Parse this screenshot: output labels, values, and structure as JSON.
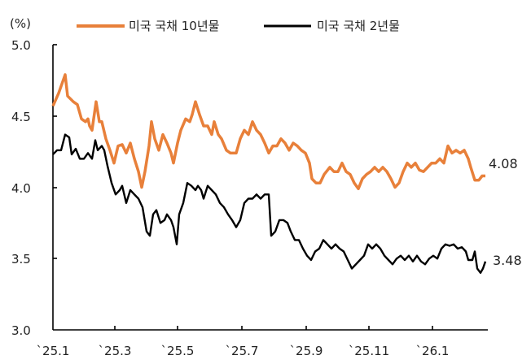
{
  "chart_data": {
    "type": "line",
    "title": "",
    "ylabel": "(%)",
    "xlabel": "",
    "ylim": [
      3.0,
      5.0
    ],
    "yticks": [
      "3.0",
      "3.5",
      "4.0",
      "4.5",
      "5.0"
    ],
    "xticks": [
      "`25.1",
      "`25.3",
      "`25.5",
      "`25.7",
      "`25.9",
      "`25.11",
      "`26.1"
    ],
    "grid": false,
    "legend_position": "top",
    "series": [
      {
        "name": "미국 국채 10년물",
        "color": "#E8803A",
        "end_label": "4.08",
        "points": [
          [
            65,
            4.57
          ],
          [
            72,
            4.66
          ],
          [
            80,
            4.79
          ],
          [
            83,
            4.64
          ],
          [
            90,
            4.6
          ],
          [
            95,
            4.58
          ],
          [
            100,
            4.48
          ],
          [
            105,
            4.46
          ],
          [
            108,
            4.48
          ],
          [
            110,
            4.43
          ],
          [
            113,
            4.4
          ],
          [
            118,
            4.6
          ],
          [
            122,
            4.46
          ],
          [
            125,
            4.46
          ],
          [
            130,
            4.34
          ],
          [
            135,
            4.26
          ],
          [
            140,
            4.17
          ],
          [
            145,
            4.29
          ],
          [
            150,
            4.3
          ],
          [
            155,
            4.24
          ],
          [
            160,
            4.31
          ],
          [
            165,
            4.2
          ],
          [
            170,
            4.11
          ],
          [
            174,
            4.0
          ],
          [
            178,
            4.11
          ],
          [
            183,
            4.29
          ],
          [
            186,
            4.46
          ],
          [
            190,
            4.34
          ],
          [
            195,
            4.26
          ],
          [
            200,
            4.37
          ],
          [
            205,
            4.31
          ],
          [
            210,
            4.24
          ],
          [
            213,
            4.17
          ],
          [
            218,
            4.31
          ],
          [
            222,
            4.4
          ],
          [
            228,
            4.48
          ],
          [
            233,
            4.46
          ],
          [
            236,
            4.51
          ],
          [
            240,
            4.6
          ],
          [
            245,
            4.51
          ],
          [
            250,
            4.43
          ],
          [
            255,
            4.43
          ],
          [
            260,
            4.37
          ],
          [
            263,
            4.46
          ],
          [
            268,
            4.37
          ],
          [
            272,
            4.34
          ],
          [
            278,
            4.26
          ],
          [
            283,
            4.24
          ],
          [
            290,
            4.24
          ],
          [
            295,
            4.34
          ],
          [
            300,
            4.4
          ],
          [
            305,
            4.37
          ],
          [
            310,
            4.46
          ],
          [
            315,
            4.4
          ],
          [
            320,
            4.37
          ],
          [
            325,
            4.31
          ],
          [
            330,
            4.24
          ],
          [
            335,
            4.29
          ],
          [
            340,
            4.29
          ],
          [
            345,
            4.34
          ],
          [
            350,
            4.31
          ],
          [
            355,
            4.26
          ],
          [
            360,
            4.31
          ],
          [
            365,
            4.29
          ],
          [
            370,
            4.26
          ],
          [
            375,
            4.24
          ],
          [
            380,
            4.17
          ],
          [
            383,
            4.06
          ],
          [
            388,
            4.03
          ],
          [
            393,
            4.03
          ],
          [
            398,
            4.09
          ],
          [
            405,
            4.14
          ],
          [
            410,
            4.11
          ],
          [
            415,
            4.11
          ],
          [
            420,
            4.17
          ],
          [
            425,
            4.11
          ],
          [
            430,
            4.09
          ],
          [
            435,
            4.03
          ],
          [
            440,
            3.99
          ],
          [
            445,
            4.06
          ],
          [
            450,
            4.09
          ],
          [
            455,
            4.11
          ],
          [
            460,
            4.14
          ],
          [
            465,
            4.11
          ],
          [
            470,
            4.14
          ],
          [
            475,
            4.11
          ],
          [
            480,
            4.06
          ],
          [
            485,
            4.0
          ],
          [
            490,
            4.03
          ],
          [
            495,
            4.11
          ],
          [
            500,
            4.17
          ],
          [
            505,
            4.14
          ],
          [
            510,
            4.17
          ],
          [
            515,
            4.12
          ],
          [
            520,
            4.11
          ],
          [
            525,
            4.14
          ],
          [
            530,
            4.17
          ],
          [
            535,
            4.17
          ],
          [
            540,
            4.2
          ],
          [
            545,
            4.17
          ],
          [
            550,
            4.29
          ],
          [
            555,
            4.24
          ],
          [
            560,
            4.26
          ],
          [
            565,
            4.24
          ],
          [
            570,
            4.26
          ],
          [
            575,
            4.2
          ],
          [
            578,
            4.14
          ],
          [
            583,
            4.05
          ],
          [
            588,
            4.05
          ],
          [
            592,
            4.08
          ],
          [
            596,
            4.08
          ]
        ]
      },
      {
        "name": "미국 국채 2년물",
        "color": "#000000",
        "end_label": "3.48",
        "points": [
          [
            65,
            4.23
          ],
          [
            70,
            4.26
          ],
          [
            75,
            4.26
          ],
          [
            80,
            4.37
          ],
          [
            85,
            4.35
          ],
          [
            88,
            4.23
          ],
          [
            93,
            4.27
          ],
          [
            98,
            4.2
          ],
          [
            103,
            4.2
          ],
          [
            108,
            4.24
          ],
          [
            113,
            4.2
          ],
          [
            117,
            4.33
          ],
          [
            120,
            4.26
          ],
          [
            125,
            4.29
          ],
          [
            128,
            4.26
          ],
          [
            132,
            4.15
          ],
          [
            137,
            4.03
          ],
          [
            142,
            3.95
          ],
          [
            147,
            3.98
          ],
          [
            150,
            4.01
          ],
          [
            155,
            3.89
          ],
          [
            160,
            3.98
          ],
          [
            165,
            3.95
          ],
          [
            170,
            3.92
          ],
          [
            175,
            3.86
          ],
          [
            180,
            3.69
          ],
          [
            184,
            3.66
          ],
          [
            188,
            3.81
          ],
          [
            192,
            3.84
          ],
          [
            197,
            3.75
          ],
          [
            202,
            3.77
          ],
          [
            205,
            3.81
          ],
          [
            210,
            3.77
          ],
          [
            213,
            3.72
          ],
          [
            217,
            3.6
          ],
          [
            220,
            3.81
          ],
          [
            225,
            3.89
          ],
          [
            230,
            4.03
          ],
          [
            235,
            4.01
          ],
          [
            240,
            3.98
          ],
          [
            243,
            4.01
          ],
          [
            247,
            3.98
          ],
          [
            250,
            3.92
          ],
          [
            255,
            4.01
          ],
          [
            260,
            3.98
          ],
          [
            265,
            3.95
          ],
          [
            270,
            3.89
          ],
          [
            275,
            3.86
          ],
          [
            280,
            3.81
          ],
          [
            285,
            3.77
          ],
          [
            290,
            3.72
          ],
          [
            295,
            3.77
          ],
          [
            300,
            3.89
          ],
          [
            305,
            3.92
          ],
          [
            310,
            3.92
          ],
          [
            315,
            3.95
          ],
          [
            320,
            3.92
          ],
          [
            325,
            3.95
          ],
          [
            330,
            3.95
          ],
          [
            333,
            3.66
          ],
          [
            338,
            3.69
          ],
          [
            343,
            3.77
          ],
          [
            348,
            3.77
          ],
          [
            353,
            3.75
          ],
          [
            357,
            3.69
          ],
          [
            362,
            3.63
          ],
          [
            367,
            3.63
          ],
          [
            372,
            3.57
          ],
          [
            377,
            3.52
          ],
          [
            382,
            3.49
          ],
          [
            387,
            3.55
          ],
          [
            392,
            3.57
          ],
          [
            397,
            3.63
          ],
          [
            402,
            3.6
          ],
          [
            407,
            3.57
          ],
          [
            412,
            3.6
          ],
          [
            417,
            3.57
          ],
          [
            422,
            3.55
          ],
          [
            427,
            3.49
          ],
          [
            432,
            3.43
          ],
          [
            437,
            3.46
          ],
          [
            442,
            3.49
          ],
          [
            447,
            3.52
          ],
          [
            452,
            3.6
          ],
          [
            457,
            3.57
          ],
          [
            462,
            3.6
          ],
          [
            467,
            3.57
          ],
          [
            472,
            3.52
          ],
          [
            477,
            3.49
          ],
          [
            482,
            3.46
          ],
          [
            487,
            3.5
          ],
          [
            492,
            3.52
          ],
          [
            497,
            3.49
          ],
          [
            502,
            3.52
          ],
          [
            507,
            3.48
          ],
          [
            512,
            3.52
          ],
          [
            517,
            3.48
          ],
          [
            522,
            3.46
          ],
          [
            527,
            3.5
          ],
          [
            532,
            3.52
          ],
          [
            537,
            3.5
          ],
          [
            542,
            3.57
          ],
          [
            547,
            3.6
          ],
          [
            552,
            3.59
          ],
          [
            557,
            3.6
          ],
          [
            562,
            3.57
          ],
          [
            567,
            3.58
          ],
          [
            572,
            3.55
          ],
          [
            575,
            3.49
          ],
          [
            580,
            3.49
          ],
          [
            583,
            3.55
          ],
          [
            586,
            3.43
          ],
          [
            590,
            3.4
          ],
          [
            593,
            3.43
          ],
          [
            596,
            3.48
          ]
        ]
      }
    ]
  },
  "legend": {
    "items": [
      {
        "label": "미국 국채 10년물",
        "color": "#E8803A"
      },
      {
        "label": "미국 국채 2년물",
        "color": "#000000"
      }
    ]
  },
  "axis": {
    "y_unit": "(%)",
    "y_labels": [
      "5.0",
      "4.5",
      "4.0",
      "3.5",
      "3.0"
    ],
    "x_labels": [
      "`25.1",
      "`25.3",
      "`25.5",
      "`25.7",
      "`25.9",
      "`25.11",
      "`26.1"
    ]
  },
  "end_labels": {
    "ten_year": "4.08",
    "two_year": "3.48"
  }
}
